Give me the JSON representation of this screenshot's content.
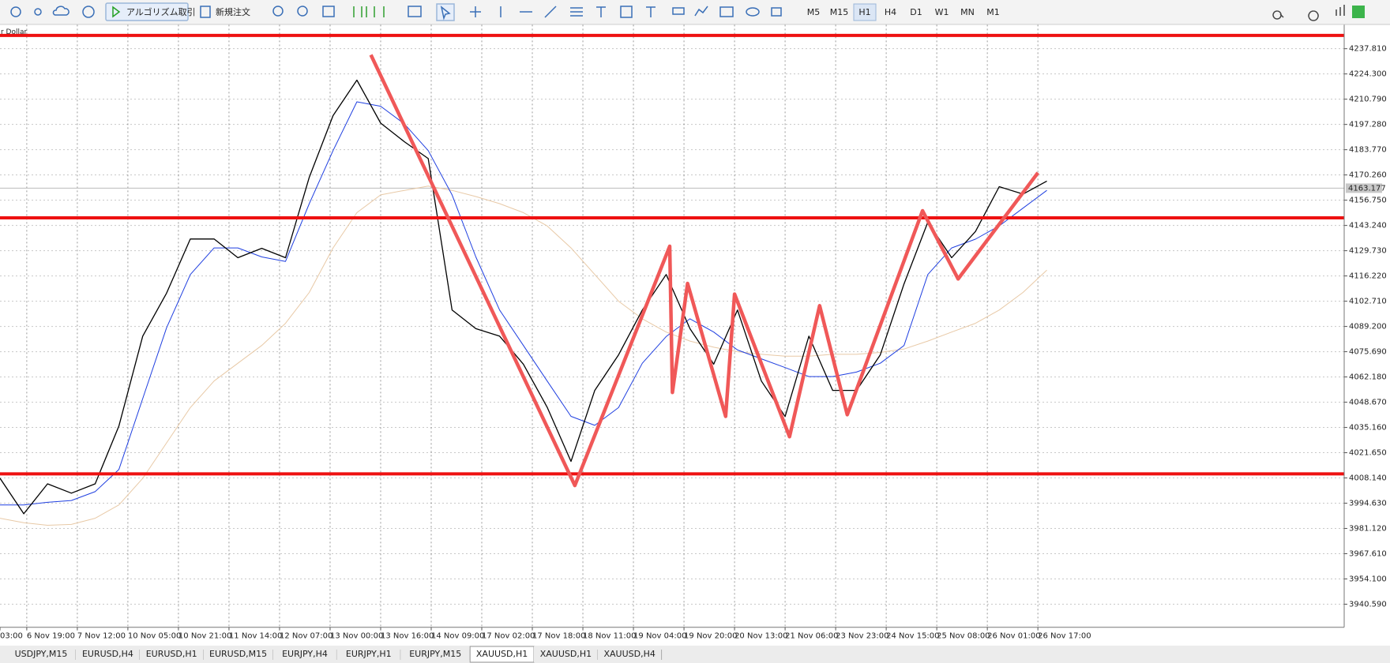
{
  "toolbar": {
    "buttons": [
      "アルゴリズム取引",
      "新規注文"
    ],
    "timeframes": [
      "M5",
      "M15",
      "H1",
      "H4",
      "D1",
      "W1",
      "MN",
      "M1"
    ],
    "active_timeframe": "H1"
  },
  "chart": {
    "symbol_label": "r Dollar",
    "ylim": [
      3928.26,
      4250.6
    ],
    "yticks": [
      {
        "value": 4237.81,
        "label": "4237.810"
      },
      {
        "value": 4224.3,
        "label": "4224.300"
      },
      {
        "value": 4210.79,
        "label": "4210.790"
      },
      {
        "value": 4197.28,
        "label": "4197.280"
      },
      {
        "value": 4183.77,
        "label": "4183.770"
      },
      {
        "value": 4170.26,
        "label": "4170.260"
      },
      {
        "value": 4156.75,
        "label": "4156.750"
      },
      {
        "value": 4143.24,
        "label": "4143.240"
      },
      {
        "value": 4129.73,
        "label": "4129.730"
      },
      {
        "value": 4116.22,
        "label": "4116.220"
      },
      {
        "value": 4102.71,
        "label": "4102.710"
      },
      {
        "value": 4089.2,
        "label": "4089.200"
      },
      {
        "value": 4075.69,
        "label": "4075.690"
      },
      {
        "value": 4062.18,
        "label": "4062.180"
      },
      {
        "value": 4048.67,
        "label": "4048.670"
      },
      {
        "value": 4035.16,
        "label": "4035.160"
      },
      {
        "value": 4021.65,
        "label": "4021.650"
      },
      {
        "value": 4008.14,
        "label": "4008.140"
      },
      {
        "value": 3994.63,
        "label": "3994.630"
      },
      {
        "value": 3981.12,
        "label": "3981.120"
      },
      {
        "value": 3967.61,
        "label": "3967.610"
      },
      {
        "value": 3954.1,
        "label": "3954.100"
      },
      {
        "value": 3940.59,
        "label": "3940.590"
      }
    ],
    "xlim": [
      8,
      460
    ],
    "xticks": [
      {
        "value": 0,
        "label": "03:00"
      },
      {
        "value": 17,
        "label": "6 Nov 19:00"
      },
      {
        "value": 34,
        "label": "7 Nov 12:00"
      },
      {
        "value": 51,
        "label": "10 Nov 05:00"
      },
      {
        "value": 68,
        "label": "10 Nov 21:00"
      },
      {
        "value": 85,
        "label": "11 Nov 14:00"
      },
      {
        "value": 102,
        "label": "12 Nov 07:00"
      },
      {
        "value": 119,
        "label": "13 Nov 00:00"
      },
      {
        "value": 136,
        "label": "13 Nov 16:00"
      },
      {
        "value": 153,
        "label": "14 Nov 09:00"
      },
      {
        "value": 170,
        "label": "17 Nov 02:00"
      },
      {
        "value": 187,
        "label": "17 Nov 18:00"
      },
      {
        "value": 204,
        "label": "18 Nov 11:00"
      },
      {
        "value": 221,
        "label": "19 Nov 04:00"
      },
      {
        "value": 238,
        "label": "19 Nov 20:00"
      },
      {
        "value": 255,
        "label": "20 Nov 13:00"
      },
      {
        "value": 272,
        "label": "21 Nov 06:00"
      },
      {
        "value": 289,
        "label": "23 Nov 23:00"
      },
      {
        "value": 306,
        "label": "24 Nov 15:00"
      },
      {
        "value": 323,
        "label": "25 Nov 08:00"
      },
      {
        "value": 340,
        "label": "26 Nov 01:00"
      },
      {
        "value": 357,
        "label": "26 Nov 17:00"
      }
    ],
    "current_price": {
      "value": 4163.177,
      "label": "4163.177"
    },
    "x": [
      8,
      16,
      24,
      32,
      40,
      48,
      56,
      64,
      72,
      80,
      88,
      96,
      104,
      112,
      120,
      128,
      136,
      144,
      152,
      160,
      168,
      176,
      184,
      192,
      200,
      208,
      216,
      224,
      232,
      240,
      248,
      256,
      264,
      272,
      280,
      288,
      296,
      304,
      312,
      320,
      328,
      336,
      344,
      352,
      360
    ],
    "price": {
      "color": "#000000",
      "values": [
        4008,
        3989,
        4005,
        4000,
        4005,
        4036,
        4084,
        4107,
        4136,
        4136,
        4126,
        4131,
        4126,
        4169,
        4202,
        4221,
        4198,
        4188,
        4179,
        4098,
        4088,
        4084,
        4069,
        4046,
        4017,
        4055,
        4074,
        4098,
        4117,
        4088,
        4069,
        4098,
        4060,
        4041,
        4084,
        4055,
        4055,
        4074,
        4112,
        4145,
        4126,
        4140,
        4164,
        4160,
        4167
      ]
    },
    "ma_fast": {
      "color": "#1f3fe0",
      "values": [
        3993.7,
        3993.7,
        3995.1,
        3996.1,
        4000.8,
        4012.7,
        4050.6,
        4088.5,
        4117.0,
        4131.2,
        4131.2,
        4126.4,
        4124.0,
        4154.9,
        4183.3,
        4209.4,
        4207.0,
        4197.5,
        4183.3,
        4159.6,
        4126.4,
        4098.0,
        4079.0,
        4060.0,
        4041.1,
        4036.3,
        4045.8,
        4069.5,
        4083.8,
        4093.3,
        4086.2,
        4076.6,
        4071.9,
        4067.2,
        4062.4,
        4062.4,
        4064.8,
        4069.5,
        4079.0,
        4117.0,
        4131.2,
        4135.9,
        4143.0,
        4152.5,
        4162.0
      ]
    },
    "ma_slow": {
      "color": "#e8c9a6",
      "values": [
        3986.6,
        3984.2,
        3982.8,
        3983.3,
        3986.6,
        3993.7,
        4007.9,
        4026.9,
        4045.8,
        4060.0,
        4069.5,
        4079.0,
        4090.9,
        4107.4,
        4131.2,
        4150.1,
        4159.6,
        4162.0,
        4164.3,
        4162.0,
        4158.7,
        4154.9,
        4150.1,
        4143.0,
        4131.2,
        4117.0,
        4102.7,
        4093.3,
        4086.2,
        4081.4,
        4078.1,
        4075.7,
        4074.3,
        4073.3,
        4073.3,
        4074.3,
        4074.3,
        4075.3,
        4077.1,
        4081.4,
        4086.2,
        4090.9,
        4098.0,
        4107.4,
        4119.3
      ]
    },
    "levels": {
      "color": "#ee1111",
      "values": [
        4244.9,
        4147.3,
        4010.3
      ]
    },
    "zigzag": {
      "color": "#f05858",
      "x": [
        132.7,
        201.3,
        233.2,
        234.1,
        239.2,
        252.0,
        255.0,
        273.5,
        283.6,
        292.9,
        318.2,
        330.2,
        357.0
      ],
      "values": [
        4234.5,
        4004.1,
        4132.1,
        4053.9,
        4112.2,
        4041.1,
        4106.5,
        4030.2,
        4100.3,
        4042.0,
        4151.1,
        4114.6,
        4171.4
      ]
    }
  },
  "tabs": {
    "items": [
      "USDJPY,M15",
      "EURUSD,H4",
      "EURUSD,H1",
      "EURUSD,M15",
      "EURJPY,H4",
      "EURJPY,H1",
      "EURJPY,M15",
      "XAUUSD,H1",
      "XAUUSD,H1",
      "XAUUSD,H4"
    ],
    "active": 7
  }
}
